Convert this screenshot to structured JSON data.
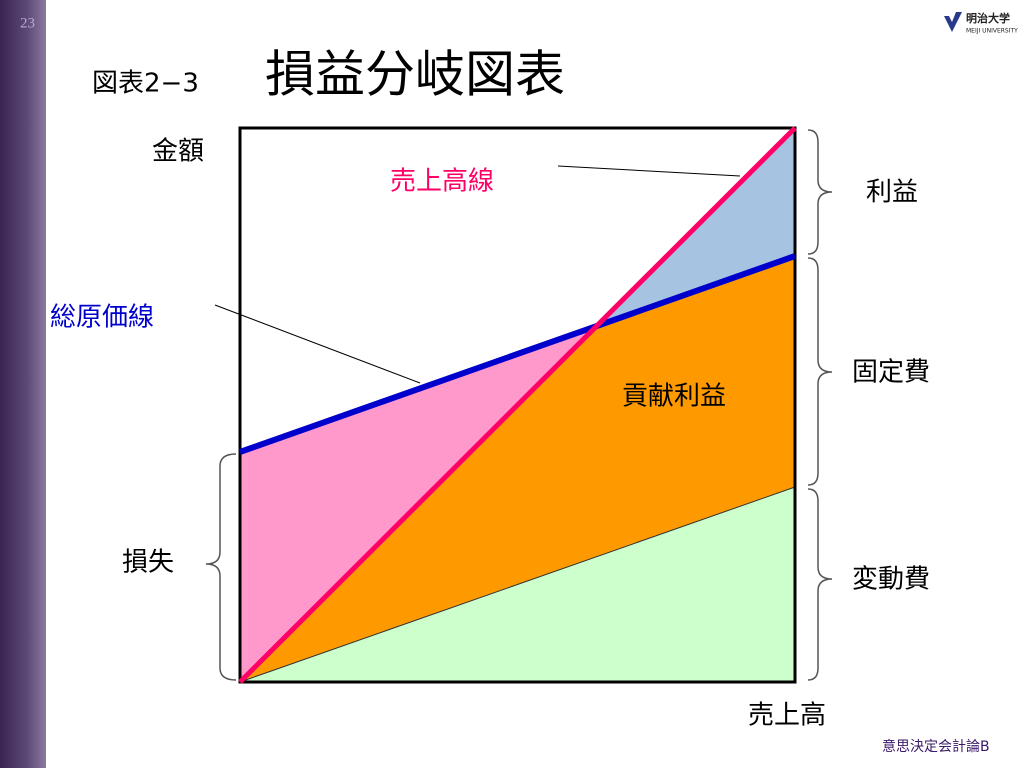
{
  "slide": {
    "page_number": "23",
    "logo": {
      "name": "明治大学",
      "subname": "MEIJI UNIVERSITY"
    },
    "figure_number": "図表2−3",
    "title": "損益分岐図表",
    "footer": "意思決定会計論B"
  },
  "diagram": {
    "y_axis_label": "金額",
    "x_axis_label": "売上高",
    "sales_line": "売上高線",
    "total_cost_line": "総原価線",
    "contribution_margin": "貢献利益",
    "profit": "利益",
    "fixed_cost": "固定費",
    "variable_cost": "変動費",
    "loss": "損失"
  }
}
